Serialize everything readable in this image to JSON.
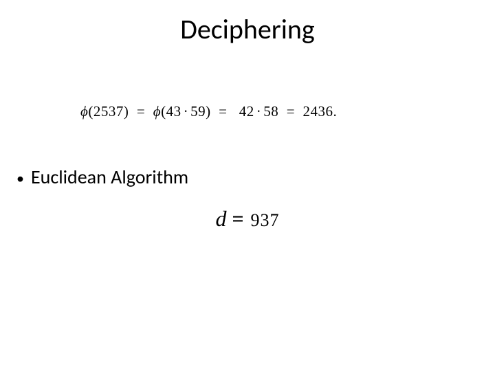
{
  "title": "Deciphering",
  "phi_equation": {
    "lhs_phi": "ϕ",
    "lhs_open": "(",
    "lhs_val": "2537",
    "lhs_close": ")",
    "eq1": "=",
    "mid_phi": "ϕ",
    "mid_open": "(",
    "mid_a": "43",
    "mid_dot": "·",
    "mid_b": "59",
    "mid_close": ")",
    "eq2": "=",
    "rhs_a": "42",
    "rhs_dot": "·",
    "rhs_b": "58",
    "eq3": "=",
    "result": "2436",
    "period": "."
  },
  "bullet": {
    "marker": "•",
    "text": "Euclidean Algorithm"
  },
  "d_equation": {
    "var": "d",
    "eq": "=",
    "val": "937"
  },
  "colors": {
    "background": "#ffffff",
    "text": "#000000"
  }
}
